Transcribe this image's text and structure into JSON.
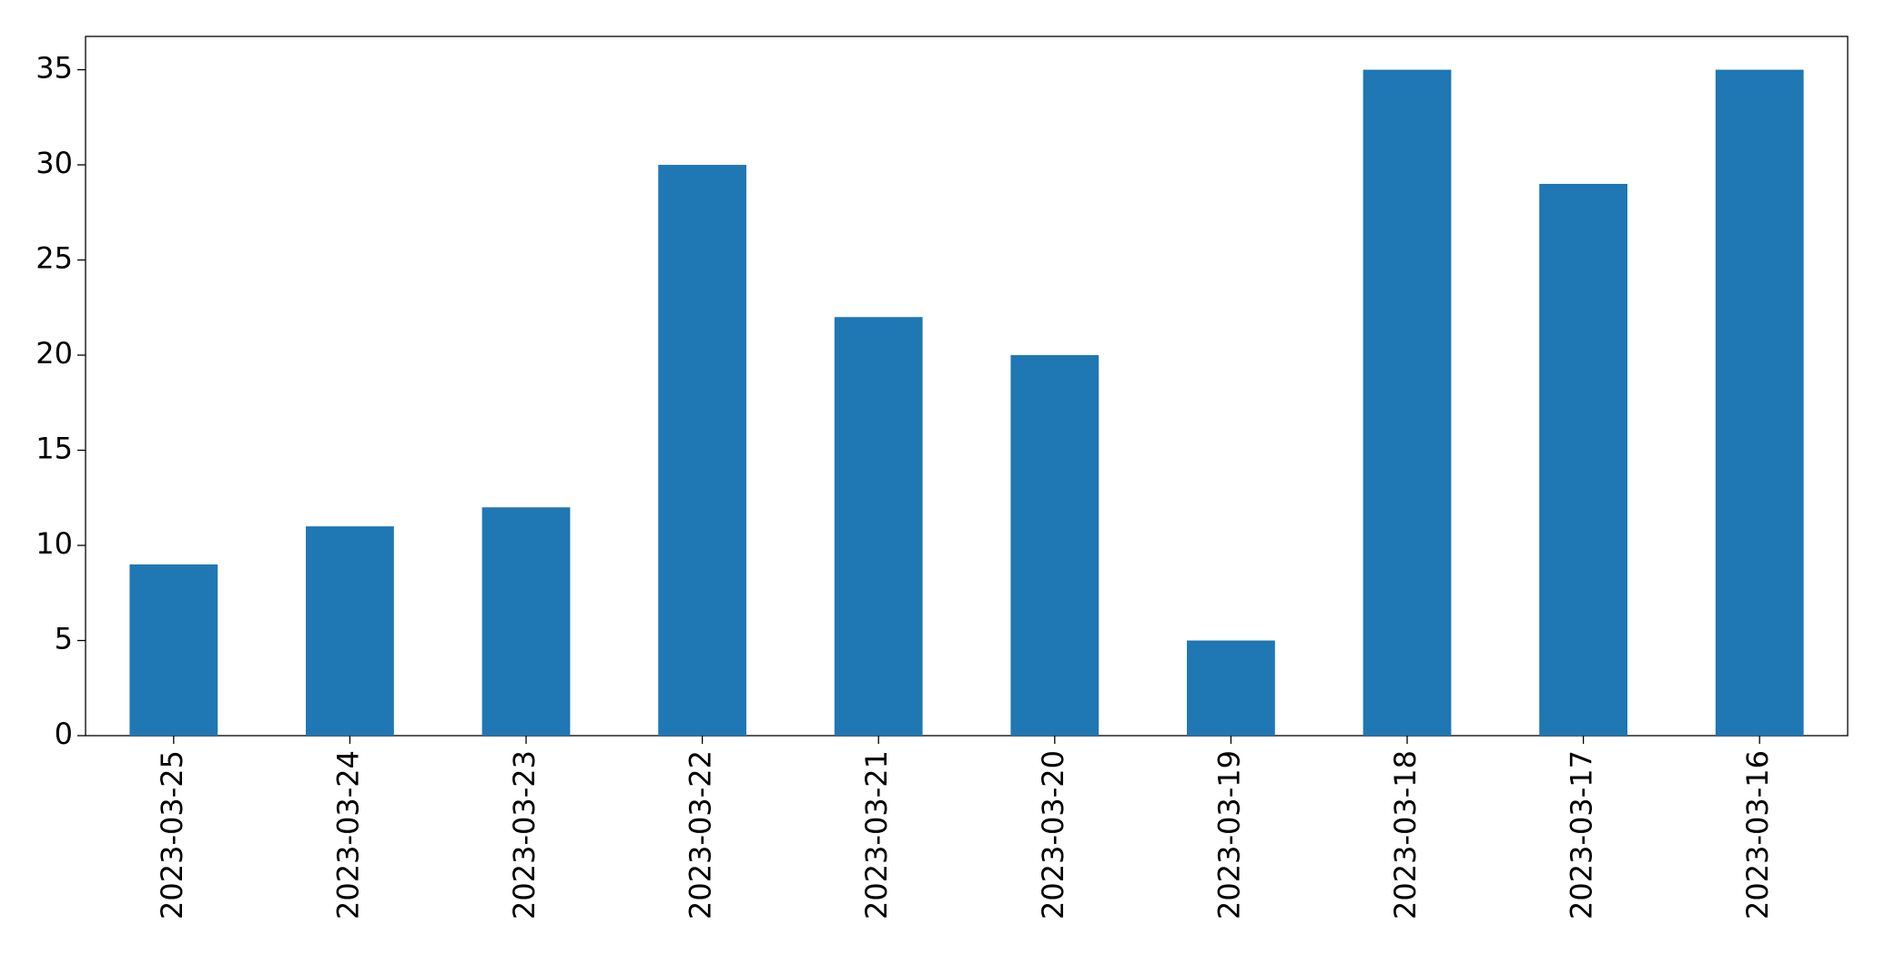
{
  "chart_data": {
    "type": "bar",
    "categories": [
      "2023-03-25",
      "2023-03-24",
      "2023-03-23",
      "2023-03-22",
      "2023-03-21",
      "2023-03-20",
      "2023-03-19",
      "2023-03-18",
      "2023-03-17",
      "2023-03-16"
    ],
    "values": [
      9,
      11,
      12,
      30,
      22,
      20,
      5,
      35,
      29,
      35
    ],
    "color": "#1f77b4",
    "ylim": [
      0,
      36.75
    ],
    "yticks": [
      0,
      5,
      10,
      15,
      20,
      25,
      30,
      35
    ],
    "grid": false
  }
}
